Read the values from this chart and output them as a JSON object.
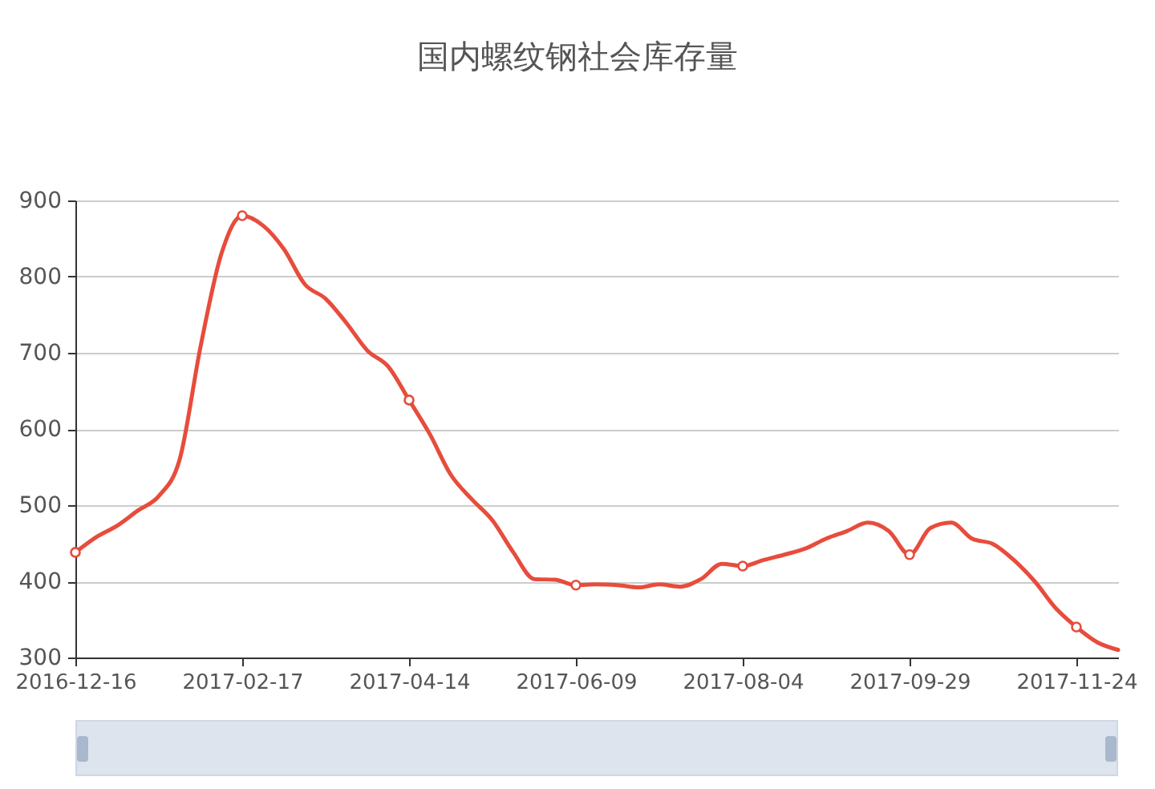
{
  "chart_data": {
    "type": "line",
    "title": "国内螺纹钢社会库存量",
    "categories": [
      "2016-12-16",
      null,
      null,
      null,
      null,
      null,
      null,
      null,
      "2017-02-17",
      null,
      null,
      null,
      null,
      null,
      null,
      null,
      "2017-04-14",
      null,
      null,
      null,
      null,
      null,
      null,
      null,
      "2017-06-09",
      null,
      null,
      null,
      null,
      null,
      null,
      null,
      "2017-08-04",
      null,
      null,
      null,
      null,
      null,
      null,
      null,
      "2017-09-29",
      null,
      null,
      null,
      null,
      null,
      null,
      null,
      "2017-11-24",
      null,
      null
    ],
    "series": [
      {
        "color": "#e74c3c",
        "values": [
          438,
          458,
          473,
          493,
          512,
          560,
          708,
          830,
          880,
          867,
          836,
          790,
          771,
          739,
          703,
          682,
          638,
          593,
          540,
          508,
          480,
          438,
          403,
          402,
          395,
          396,
          395,
          392,
          396,
          393,
          403,
          423,
          420,
          428,
          435,
          443,
          456,
          466,
          477,
          466,
          435,
          470,
          477,
          456,
          449,
          428,
          400,
          365,
          340,
          320,
          310
        ]
      },
      {
        "type": "scatter",
        "marker": "circle",
        "color": "#e74c3c",
        "values": [
          438,
          null,
          null,
          null,
          null,
          null,
          null,
          null,
          880,
          null,
          null,
          null,
          null,
          null,
          null,
          null,
          638,
          null,
          null,
          null,
          null,
          null,
          null,
          null,
          395,
          null,
          null,
          null,
          null,
          null,
          null,
          null,
          420,
          null,
          null,
          null,
          null,
          null,
          null,
          null,
          435,
          null,
          null,
          null,
          null,
          null,
          null,
          null,
          340,
          null,
          null
        ]
      }
    ],
    "ylim": [
      300,
      900
    ],
    "yticks": [
      300,
      400,
      500,
      600,
      700,
      800,
      900
    ],
    "grid": "y",
    "line_style": "solid"
  }
}
